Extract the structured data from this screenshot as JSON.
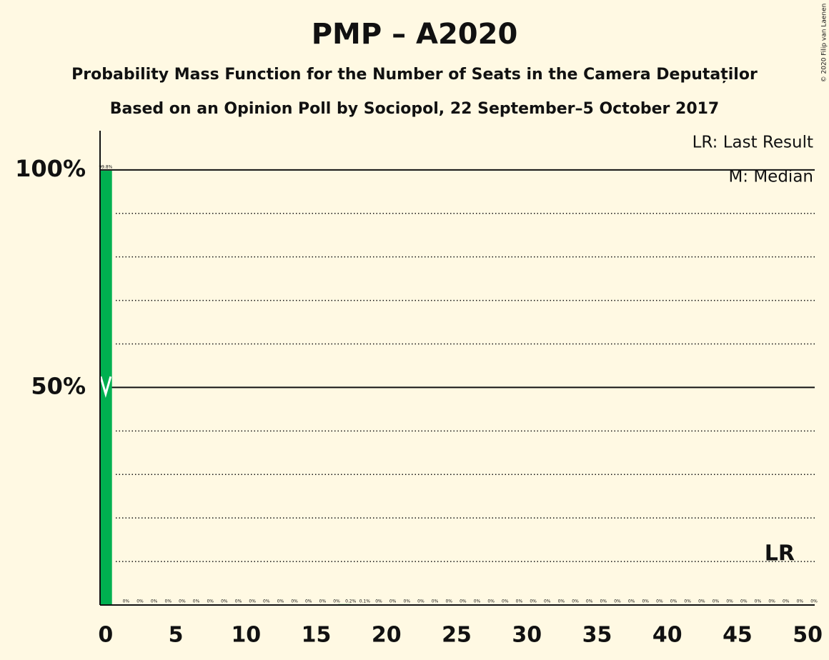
{
  "chart_data": {
    "type": "bar",
    "title": "PMP – A2020",
    "subtitle": "Probability Mass Function for the Number of Seats in the Camera Deputaților",
    "subtitle2": "Based on an Opinion Poll by Sociopol, 22 September–5 October 2017",
    "copyright": "© 2020 Filip van Laenen",
    "legend": [
      "LR: Last Result",
      "M: Median"
    ],
    "last_result": {
      "x": 48,
      "label": "LR"
    },
    "median": {
      "x": 0
    },
    "color": "#00b050",
    "x": [
      0,
      1,
      2,
      3,
      4,
      5,
      6,
      7,
      8,
      9,
      10,
      11,
      12,
      13,
      14,
      15,
      16,
      17,
      18,
      19,
      20,
      21,
      22,
      23,
      24,
      25,
      26,
      27,
      28,
      29,
      30,
      31,
      32,
      33,
      34,
      35,
      36,
      37,
      38,
      39,
      40,
      41,
      42,
      43,
      44,
      45,
      46,
      47,
      48,
      49,
      50
    ],
    "values": [
      99.8,
      0,
      0,
      0,
      0,
      0,
      0,
      0,
      0,
      0,
      0,
      0,
      0,
      0,
      0,
      0,
      0,
      0.2,
      0.1,
      0,
      0,
      0,
      0,
      0,
      0,
      0,
      0,
      0,
      0,
      0,
      0,
      0,
      0,
      0,
      0,
      0,
      0,
      0,
      0,
      0,
      0,
      0,
      0,
      0,
      0,
      0,
      0,
      0,
      0,
      0,
      0
    ],
    "value_labels": [
      "99.8%",
      "0%",
      "0%",
      "0%",
      "0%",
      "0%",
      "0%",
      "0%",
      "0%",
      "0%",
      "0%",
      "0%",
      "0%",
      "0%",
      "0%",
      "0%",
      "0%",
      "0.2%",
      "0.1%",
      "0%",
      "0%",
      "0%",
      "0%",
      "0%",
      "0%",
      "0%",
      "0%",
      "0%",
      "0%",
      "0%",
      "0%",
      "0%",
      "0%",
      "0%",
      "0%",
      "0%",
      "0%",
      "0%",
      "0%",
      "0%",
      "0%",
      "0%",
      "0%",
      "0%",
      "0%",
      "0%",
      "0%",
      "0%",
      "0%",
      "0%",
      "0%"
    ],
    "xlim": [
      -0.4,
      50.5
    ],
    "xticks": [
      0,
      5,
      10,
      15,
      20,
      25,
      30,
      35,
      40,
      45,
      50
    ],
    "ylim": [
      0,
      109
    ],
    "yticks": [
      {
        "value": 50,
        "label": "50%"
      },
      {
        "value": 100,
        "label": "100%"
      }
    ],
    "minor_grid": [
      10,
      20,
      30,
      40,
      60,
      70,
      80,
      90
    ],
    "grid": true
  }
}
